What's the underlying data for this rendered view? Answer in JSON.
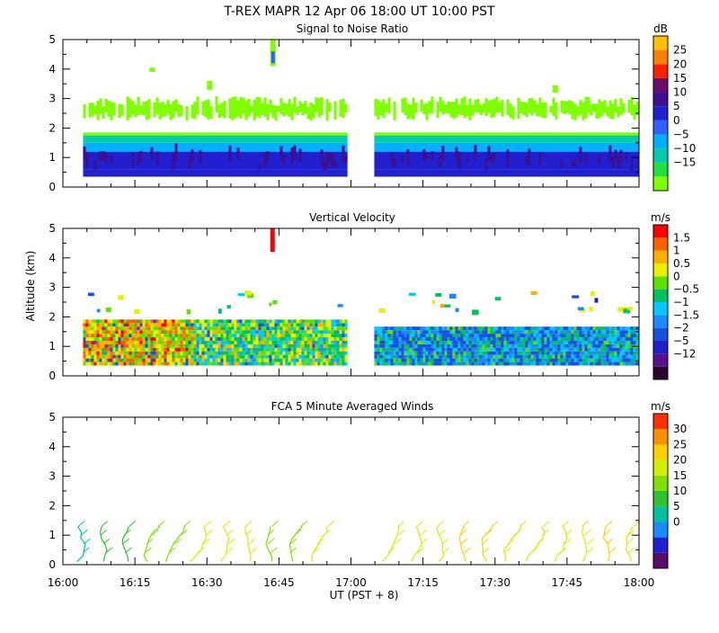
{
  "page": {
    "title": "T-REX   MAPR 12 Apr 06   18:00 UT   10:00   PST",
    "ylabel": "Altitude (km)",
    "xlabel": "UT  (PST + 8)"
  },
  "colors": {
    "snr_scale": [
      "#80ff00",
      "#20e040",
      "#00ccaa",
      "#00b0ff",
      "#3060ff",
      "#2020d0",
      "#3c1090",
      "#6a0c6a",
      "#ff2000",
      "#ff8000",
      "#ffc000"
    ],
    "vv_scale": [
      "#2a0530",
      "#5a1090",
      "#2020c8",
      "#1850e0",
      "#1e88ff",
      "#00c8ff",
      "#00c060",
      "#60e000",
      "#e8f000",
      "#ffb000",
      "#ff6000",
      "#ff0000"
    ],
    "wind_scale": [
      "#5a0c6a",
      "#2020d0",
      "#1a8aff",
      "#00c0a0",
      "#30c030",
      "#80e000",
      "#d0f000",
      "#ffd000",
      "#ff9000",
      "#ff3000"
    ],
    "gap_hint": "#ffffff"
  },
  "chart_data": [
    {
      "type": "heatmap",
      "title": "Signal to Noise Ratio",
      "unit": "dB",
      "xlim": [
        16.0,
        18.0
      ],
      "ylim": [
        0,
        5
      ],
      "x_ticks": [
        "16:00",
        "16:15",
        "16:30",
        "16:45",
        "17:00",
        "17:15",
        "17:30",
        "17:45",
        "18:00"
      ],
      "y_ticks": [
        "0",
        "1",
        "2",
        "3",
        "4",
        "5"
      ],
      "colorbar_labels": [
        "25",
        "20",
        "15",
        "10",
        "5",
        "0",
        "−5",
        "−10",
        "−15"
      ],
      "data_gap_ut": [
        16.98,
        17.08
      ],
      "bands": [
        {
          "alt": [
            0.35,
            0.6
          ],
          "db": 5
        },
        {
          "alt": [
            0.6,
            1.2
          ],
          "db": 6
        },
        {
          "alt": [
            1.2,
            1.5
          ],
          "db": -3
        },
        {
          "alt": [
            1.5,
            1.75
          ],
          "db": -8
        },
        {
          "alt": [
            1.75,
            1.85
          ],
          "db": -15
        },
        {
          "alt": [
            2.4,
            2.9
          ],
          "db": -15
        }
      ]
    },
    {
      "type": "heatmap",
      "title": "Vertical Velocity",
      "unit": "m/s",
      "xlim": [
        16.0,
        18.0
      ],
      "ylim": [
        0,
        5
      ],
      "x_ticks": [
        "16:00",
        "16:15",
        "16:30",
        "16:45",
        "17:00",
        "17:15",
        "17:30",
        "17:45",
        "18:00"
      ],
      "y_ticks": [
        "0",
        "1",
        "2",
        "3",
        "4",
        "5"
      ],
      "colorbar_labels": [
        "1.5",
        "1",
        "0.5",
        "0",
        "−0.5",
        "−1",
        "−1.5",
        "−2",
        "−5",
        "−12"
      ],
      "data_gap_ut": [
        16.98,
        17.08
      ],
      "segments": [
        {
          "ut": [
            16.0,
            16.45
          ],
          "alt": [
            0.35,
            1.85
          ],
          "ms": 0.5
        },
        {
          "ut": [
            16.45,
            16.98
          ],
          "alt": [
            0.35,
            1.85
          ],
          "ms": -0.5
        },
        {
          "ut": [
            17.08,
            18.0
          ],
          "alt": [
            0.35,
            1.65
          ],
          "ms": -1.5
        }
      ]
    },
    {
      "type": "scatter",
      "title": "FCA 5 Minute Averaged Winds",
      "unit": "m/s",
      "xlim": [
        16.0,
        18.0
      ],
      "ylim": [
        0,
        5
      ],
      "x_ticks": [
        "16:00",
        "16:15",
        "16:30",
        "16:45",
        "17:00",
        "17:15",
        "17:30",
        "17:45",
        "18:00"
      ],
      "y_ticks": [
        "0",
        "1",
        "2",
        "3",
        "4",
        "5"
      ],
      "colorbar_labels": [
        "30",
        "25",
        "20",
        "15",
        "10",
        "5",
        "0"
      ],
      "profile_alt_range_km": [
        0.1,
        1.3
      ],
      "profile_times_ut": [
        "16:05",
        "16:10",
        "16:15",
        "16:20",
        "16:25",
        "16:30",
        "16:35",
        "16:40",
        "16:45",
        "16:50",
        "16:55",
        "17:10",
        "17:15",
        "17:20",
        "17:25",
        "17:30",
        "17:35",
        "17:40",
        "17:45",
        "17:50",
        "17:55",
        "18:00"
      ],
      "profile_speed_ms": [
        8,
        12,
        14,
        15,
        17,
        20,
        19,
        18,
        16,
        17,
        18,
        20,
        19,
        20,
        21,
        22,
        20,
        19,
        18,
        18,
        23,
        20
      ]
    }
  ]
}
